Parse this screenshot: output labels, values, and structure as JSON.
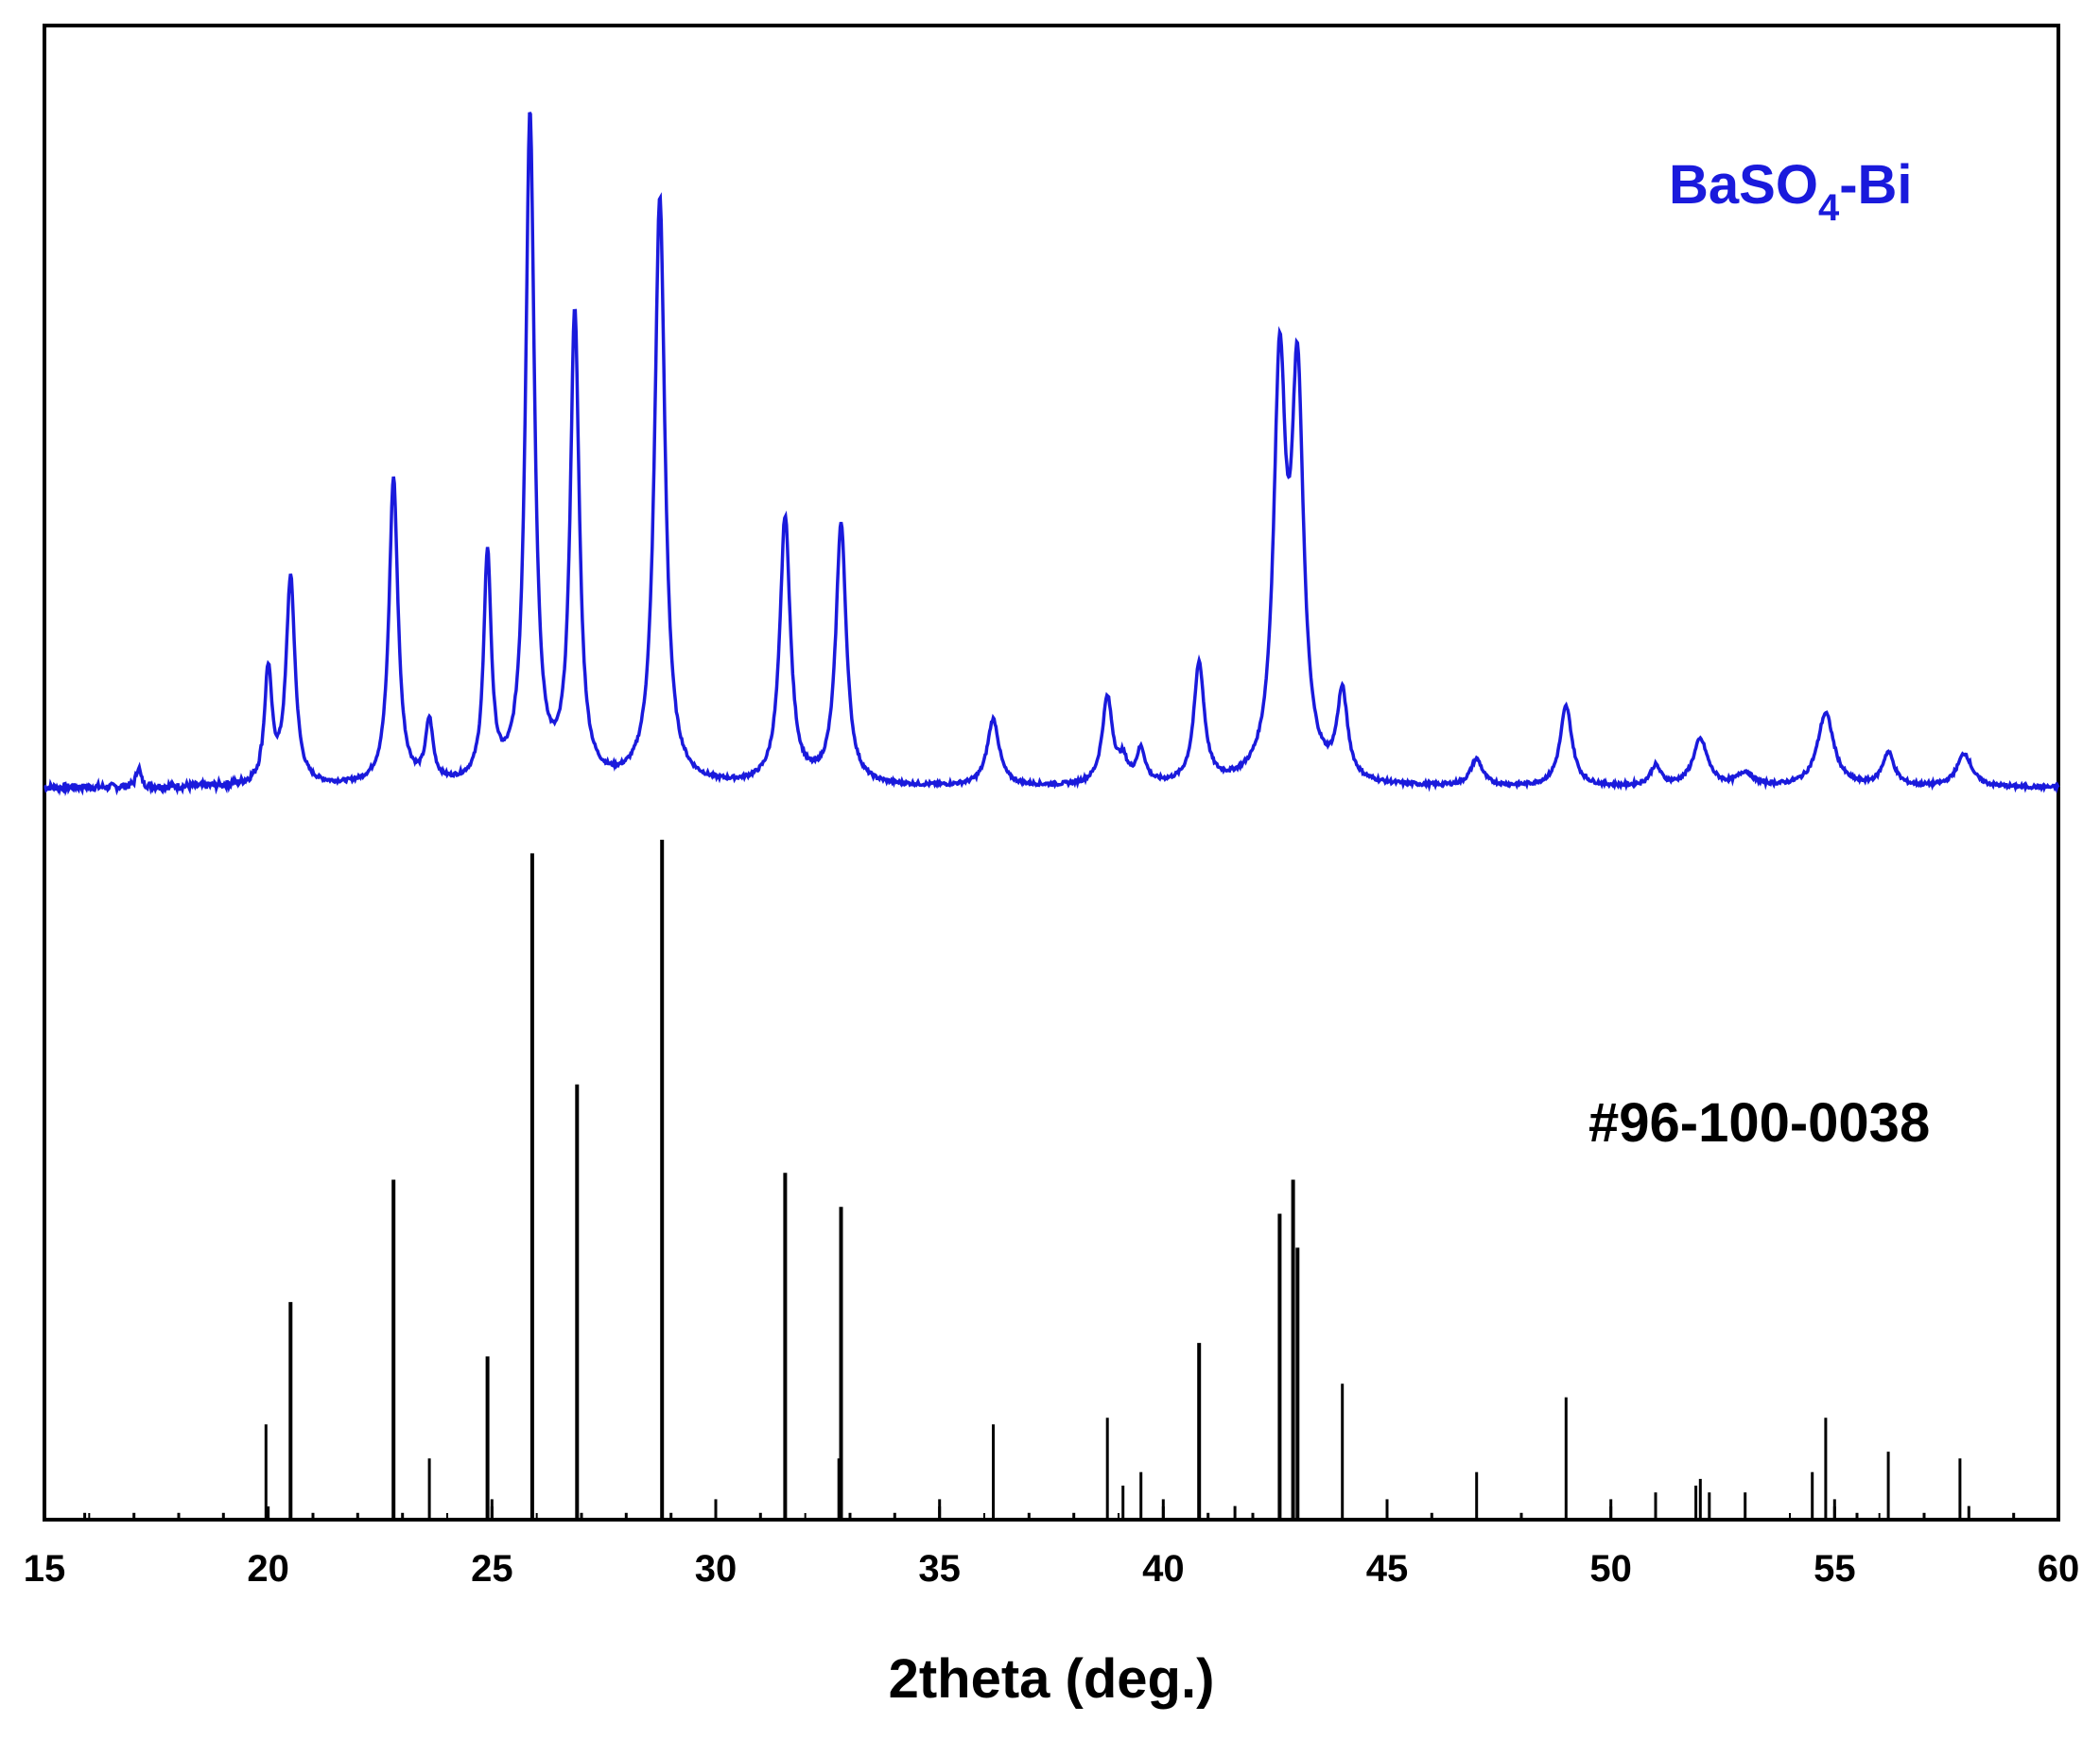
{
  "chart_data": {
    "type": "line",
    "title": "",
    "xlabel": "2theta (deg.)",
    "ylabel": "",
    "xlim": [
      15,
      60
    ],
    "x_ticks": [
      15,
      20,
      25,
      30,
      35,
      40,
      45,
      50,
      55,
      60
    ],
    "x_tick_labels": [
      "15",
      "20",
      "25",
      "30",
      "35",
      "40",
      "45",
      "50",
      "55",
      "60"
    ],
    "y_ticks_shown": false,
    "grid": false,
    "series": [
      {
        "name": "BaSO4-Bi",
        "label_main": "BaSO",
        "label_sub": "4",
        "label_tail": "-Bi",
        "color": "#1a1adc",
        "kind": "pattern",
        "baseline": 0,
        "peaks": [
          {
            "x": 17.1,
            "h": 3,
            "w": 0.06
          },
          {
            "x": 20.0,
            "h": 17,
            "w": 0.1
          },
          {
            "x": 20.5,
            "h": 31,
            "w": 0.12
          },
          {
            "x": 22.8,
            "h": 46,
            "w": 0.12
          },
          {
            "x": 23.6,
            "h": 9,
            "w": 0.1
          },
          {
            "x": 24.9,
            "h": 34,
            "w": 0.1
          },
          {
            "x": 25.85,
            "h": 100,
            "w": 0.12
          },
          {
            "x": 26.85,
            "h": 70,
            "w": 0.12
          },
          {
            "x": 28.75,
            "h": 88,
            "w": 0.14
          },
          {
            "x": 31.55,
            "h": 40,
            "w": 0.14
          },
          {
            "x": 32.8,
            "h": 39,
            "w": 0.14
          },
          {
            "x": 36.2,
            "h": 10,
            "w": 0.16
          },
          {
            "x": 38.75,
            "h": 13,
            "w": 0.14
          },
          {
            "x": 39.1,
            "h": 3,
            "w": 0.12
          },
          {
            "x": 39.5,
            "h": 5,
            "w": 0.12
          },
          {
            "x": 40.8,
            "h": 18,
            "w": 0.14
          },
          {
            "x": 42.6,
            "h": 60,
            "w": 0.16
          },
          {
            "x": 43.0,
            "h": 58,
            "w": 0.16
          },
          {
            "x": 44.0,
            "h": 13,
            "w": 0.14
          },
          {
            "x": 47.0,
            "h": 4,
            "w": 0.16
          },
          {
            "x": 49.0,
            "h": 12,
            "w": 0.16
          },
          {
            "x": 51.0,
            "h": 3,
            "w": 0.14
          },
          {
            "x": 52.0,
            "h": 7,
            "w": 0.2
          },
          {
            "x": 53.0,
            "h": 2,
            "w": 0.2
          },
          {
            "x": 54.8,
            "h": 11,
            "w": 0.22
          },
          {
            "x": 56.2,
            "h": 5,
            "w": 0.16
          },
          {
            "x": 57.9,
            "h": 5,
            "w": 0.2
          }
        ]
      },
      {
        "name": "#96-100-0038",
        "color": "#000000",
        "kind": "sticks",
        "baseline": 0,
        "sticks": [
          {
            "x": 15.9,
            "h": 1
          },
          {
            "x": 17.0,
            "h": 1
          },
          {
            "x": 18.0,
            "h": 1
          },
          {
            "x": 19.0,
            "h": 1
          },
          {
            "x": 19.95,
            "h": 14
          },
          {
            "x": 20.5,
            "h": 32
          },
          {
            "x": 21.0,
            "h": 1
          },
          {
            "x": 22.0,
            "h": 1
          },
          {
            "x": 22.8,
            "h": 50
          },
          {
            "x": 23.0,
            "h": 1
          },
          {
            "x": 23.6,
            "h": 9
          },
          {
            "x": 24.9,
            "h": 24
          },
          {
            "x": 25.0,
            "h": 3
          },
          {
            "x": 25.9,
            "h": 98
          },
          {
            "x": 26.9,
            "h": 64
          },
          {
            "x": 27.0,
            "h": 1
          },
          {
            "x": 28.0,
            "h": 1
          },
          {
            "x": 28.8,
            "h": 100
          },
          {
            "x": 29.0,
            "h": 1
          },
          {
            "x": 30.0,
            "h": 3
          },
          {
            "x": 31.0,
            "h": 1
          },
          {
            "x": 31.55,
            "h": 51
          },
          {
            "x": 32.75,
            "h": 9
          },
          {
            "x": 32.8,
            "h": 46
          },
          {
            "x": 33.0,
            "h": 1
          },
          {
            "x": 34.0,
            "h": 1
          },
          {
            "x": 35.0,
            "h": 3
          },
          {
            "x": 36.2,
            "h": 14
          },
          {
            "x": 37.0,
            "h": 1
          },
          {
            "x": 38.0,
            "h": 1
          },
          {
            "x": 38.75,
            "h": 15
          },
          {
            "x": 39.1,
            "h": 5
          },
          {
            "x": 39.5,
            "h": 7
          },
          {
            "x": 40.0,
            "h": 3
          },
          {
            "x": 40.8,
            "h": 26
          },
          {
            "x": 41.0,
            "h": 1
          },
          {
            "x": 41.6,
            "h": 2
          },
          {
            "x": 42.0,
            "h": 1
          },
          {
            "x": 42.6,
            "h": 45
          },
          {
            "x": 42.9,
            "h": 50
          },
          {
            "x": 43.0,
            "h": 40
          },
          {
            "x": 44.0,
            "h": 20
          },
          {
            "x": 45.0,
            "h": 3
          },
          {
            "x": 46.0,
            "h": 1
          },
          {
            "x": 47.0,
            "h": 7
          },
          {
            "x": 48.0,
            "h": 1
          },
          {
            "x": 49.0,
            "h": 18
          },
          {
            "x": 50.0,
            "h": 3
          },
          {
            "x": 51.0,
            "h": 4
          },
          {
            "x": 51.9,
            "h": 5
          },
          {
            "x": 52.0,
            "h": 6
          },
          {
            "x": 52.2,
            "h": 4
          },
          {
            "x": 53.0,
            "h": 4
          },
          {
            "x": 54.5,
            "h": 7
          },
          {
            "x": 54.8,
            "h": 15
          },
          {
            "x": 55.0,
            "h": 3
          },
          {
            "x": 55.5,
            "h": 1
          },
          {
            "x": 56.2,
            "h": 10
          },
          {
            "x": 57.0,
            "h": 1
          },
          {
            "x": 57.8,
            "h": 9
          },
          {
            "x": 58.0,
            "h": 2
          },
          {
            "x": 59.0,
            "h": 1
          }
        ]
      }
    ]
  }
}
